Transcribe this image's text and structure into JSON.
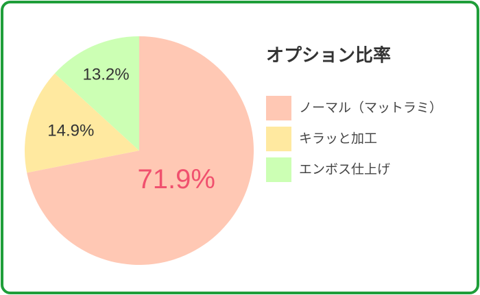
{
  "chart_data": {
    "type": "pie",
    "title": "オプション比率",
    "categories": [
      "ノーマル（マットラミ）",
      "キラッと加工",
      "エンボス仕上げ"
    ],
    "values": [
      71.9,
      14.9,
      13.2
    ],
    "value_labels": [
      "71.9%",
      "14.9%",
      "13.2%"
    ],
    "colors": [
      "#ffc8b4",
      "#ffe9a0",
      "#ccffb4"
    ]
  }
}
